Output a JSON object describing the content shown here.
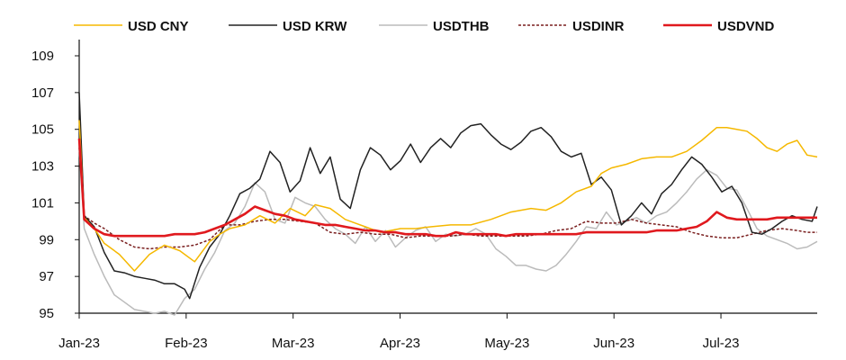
{
  "chart_data": {
    "type": "line",
    "title": "",
    "xlabel": "",
    "ylabel": "",
    "x_ticks": [
      "Jan-23",
      "Feb-23",
      "Mar-23",
      "Apr-23",
      "May-23",
      "Jun-23",
      "Jul-23"
    ],
    "y_ticks": [
      95,
      97,
      99,
      101,
      103,
      105,
      107,
      109
    ],
    "ylim": [
      95,
      110
    ],
    "xlim": [
      0,
      147
    ],
    "grid": false,
    "legend_position": "top",
    "series": [
      {
        "name": "USD CNY",
        "color": "#F5B800",
        "style": "solid",
        "x": [
          0,
          1,
          3,
          5,
          8,
          11,
          14,
          17,
          20,
          23,
          26,
          28,
          30,
          33,
          36,
          39,
          42,
          45,
          47,
          50,
          53,
          55,
          57,
          60,
          62,
          64,
          67,
          70,
          74,
          78,
          82,
          86,
          90,
          93,
          96,
          99,
          102,
          104,
          106,
          109,
          112,
          115,
          118,
          121,
          124,
          127,
          129,
          131,
          133,
          135,
          137,
          139,
          141,
          143,
          145,
          147
        ],
        "values": [
          105.5,
          100.2,
          99.6,
          98.8,
          98.2,
          97.3,
          98.2,
          98.7,
          98.4,
          97.8,
          98.9,
          99.3,
          99.6,
          99.8,
          100.3,
          99.9,
          100.7,
          100.3,
          100.9,
          100.7,
          100.1,
          99.9,
          99.7,
          99.4,
          99.5,
          99.6,
          99.6,
          99.7,
          99.8,
          99.8,
          100.1,
          100.5,
          100.7,
          100.6,
          101.0,
          101.6,
          101.9,
          102.6,
          102.9,
          103.1,
          103.4,
          103.5,
          103.5,
          103.8,
          104.4,
          105.1,
          105.1,
          105.0,
          104.9,
          104.5,
          104.0,
          103.8,
          104.2,
          104.4,
          103.6,
          103.5
        ]
      },
      {
        "name": "USD KRW",
        "color": "#222222",
        "style": "solid",
        "x": [
          0,
          1,
          3,
          5,
          7,
          9,
          11,
          13,
          15,
          17,
          19,
          21,
          22,
          24,
          26,
          28,
          30,
          32,
          34,
          36,
          38,
          40,
          42,
          44,
          46,
          48,
          50,
          52,
          54,
          56,
          58,
          60,
          62,
          64,
          66,
          68,
          70,
          72,
          74,
          76,
          78,
          80,
          82,
          84,
          86,
          88,
          90,
          92,
          94,
          96,
          98,
          100,
          102,
          104,
          106,
          108,
          110,
          112,
          114,
          116,
          118,
          120,
          122,
          124,
          126,
          128,
          130,
          132,
          134,
          136,
          138,
          140,
          142,
          144,
          146,
          147
        ],
        "values": [
          107.0,
          100.3,
          99.7,
          98.3,
          97.3,
          97.2,
          97.0,
          96.9,
          96.8,
          96.6,
          96.6,
          96.3,
          95.8,
          97.5,
          98.6,
          99.3,
          100.3,
          101.5,
          101.8,
          102.3,
          103.8,
          103.2,
          101.6,
          102.2,
          104.0,
          102.6,
          103.5,
          101.2,
          100.7,
          102.8,
          104.0,
          103.6,
          102.8,
          103.3,
          104.2,
          103.2,
          104.0,
          104.5,
          104.0,
          104.8,
          105.2,
          105.3,
          104.7,
          104.2,
          103.9,
          104.3,
          104.9,
          105.1,
          104.6,
          103.8,
          103.5,
          103.7,
          102.0,
          102.4,
          101.7,
          99.8,
          100.3,
          101.0,
          100.4,
          101.5,
          102.0,
          102.8,
          103.5,
          103.1,
          102.4,
          101.6,
          101.9,
          101.0,
          99.4,
          99.3,
          99.6,
          100.0,
          100.3,
          100.1,
          100.0,
          100.8
        ]
      },
      {
        "name": "USDTHB",
        "color": "#BBBBBB",
        "style": "solid",
        "x": [
          0,
          1,
          3,
          5,
          7,
          9,
          11,
          13,
          15,
          17,
          19,
          21,
          23,
          25,
          27,
          29,
          31,
          33,
          35,
          37,
          39,
          41,
          43,
          45,
          47,
          49,
          51,
          53,
          55,
          57,
          59,
          61,
          63,
          65,
          67,
          69,
          71,
          73,
          75,
          77,
          79,
          81,
          83,
          85,
          87,
          89,
          91,
          93,
          95,
          97,
          99,
          101,
          103,
          105,
          107,
          109,
          111,
          113,
          115,
          117,
          119,
          121,
          123,
          125,
          127,
          129,
          131,
          133,
          135,
          137,
          139,
          141,
          143,
          145,
          147
        ],
        "values": [
          104.0,
          99.6,
          98.2,
          97.0,
          96.0,
          95.6,
          95.2,
          95.1,
          95.0,
          95.1,
          94.9,
          95.8,
          96.3,
          97.4,
          98.3,
          99.5,
          99.9,
          100.8,
          102.1,
          101.6,
          100.1,
          99.9,
          101.3,
          101.0,
          100.8,
          100.1,
          99.6,
          99.3,
          98.8,
          99.7,
          98.9,
          99.5,
          98.6,
          99.1,
          99.5,
          99.7,
          98.9,
          99.3,
          99.2,
          99.3,
          99.6,
          99.3,
          98.5,
          98.1,
          97.6,
          97.6,
          97.4,
          97.3,
          97.6,
          98.2,
          98.9,
          99.7,
          99.6,
          100.5,
          99.8,
          100.0,
          100.2,
          99.9,
          100.3,
          100.5,
          101.0,
          101.6,
          102.3,
          102.8,
          102.5,
          101.8,
          101.7,
          100.7,
          99.6,
          99.2,
          99.0,
          98.8,
          98.5,
          98.6,
          98.9
        ]
      },
      {
        "name": "USDINR",
        "color": "#7A1F1F",
        "style": "dashed",
        "x": [
          0,
          1,
          3,
          5,
          8,
          11,
          14,
          17,
          20,
          23,
          26,
          29,
          32,
          35,
          38,
          41,
          44,
          47,
          50,
          53,
          56,
          59,
          62,
          65,
          68,
          71,
          74,
          77,
          80,
          83,
          86,
          89,
          92,
          95,
          98,
          101,
          104,
          107,
          110,
          113,
          116,
          119,
          122,
          125,
          128,
          131,
          134,
          137,
          140,
          143,
          145,
          147
        ],
        "values": [
          104.0,
          100.3,
          99.9,
          99.6,
          99.0,
          98.6,
          98.5,
          98.6,
          98.6,
          98.7,
          99.0,
          99.8,
          99.8,
          100.0,
          100.1,
          100.1,
          100.0,
          99.9,
          99.4,
          99.3,
          99.4,
          99.3,
          99.3,
          99.1,
          99.2,
          99.2,
          99.2,
          99.3,
          99.2,
          99.2,
          99.2,
          99.2,
          99.3,
          99.5,
          99.6,
          100.0,
          99.9,
          99.9,
          100.1,
          99.9,
          99.8,
          99.7,
          99.4,
          99.2,
          99.1,
          99.1,
          99.3,
          99.5,
          99.6,
          99.5,
          99.4,
          99.4
        ]
      },
      {
        "name": "USDVND",
        "color": "#E0191E",
        "style": "solid",
        "x": [
          0,
          1,
          3,
          5,
          7,
          9,
          11,
          13,
          15,
          17,
          19,
          21,
          23,
          25,
          27,
          29,
          31,
          33,
          35,
          37,
          39,
          41,
          43,
          45,
          47,
          49,
          51,
          53,
          55,
          57,
          59,
          61,
          63,
          65,
          67,
          69,
          71,
          73,
          75,
          77,
          79,
          81,
          83,
          85,
          87,
          89,
          91,
          93,
          95,
          97,
          99,
          101,
          103,
          105,
          107,
          109,
          111,
          113,
          115,
          117,
          119,
          121,
          123,
          125,
          127,
          129,
          131,
          133,
          135,
          137,
          139,
          141,
          143,
          145,
          147
        ],
        "values": [
          104.5,
          100.1,
          99.6,
          99.3,
          99.2,
          99.2,
          99.2,
          99.2,
          99.2,
          99.2,
          99.3,
          99.3,
          99.3,
          99.4,
          99.6,
          99.8,
          100.1,
          100.4,
          100.8,
          100.6,
          100.4,
          100.3,
          100.1,
          100.0,
          99.9,
          99.8,
          99.8,
          99.7,
          99.6,
          99.5,
          99.5,
          99.4,
          99.4,
          99.3,
          99.3,
          99.3,
          99.2,
          99.2,
          99.4,
          99.3,
          99.3,
          99.3,
          99.3,
          99.2,
          99.3,
          99.3,
          99.3,
          99.3,
          99.3,
          99.3,
          99.3,
          99.4,
          99.4,
          99.4,
          99.4,
          99.4,
          99.4,
          99.4,
          99.5,
          99.5,
          99.5,
          99.6,
          99.7,
          100.0,
          100.5,
          100.2,
          100.1,
          100.1,
          100.1,
          100.1,
          100.2,
          100.2,
          100.2,
          100.2,
          100.2
        ]
      }
    ]
  }
}
